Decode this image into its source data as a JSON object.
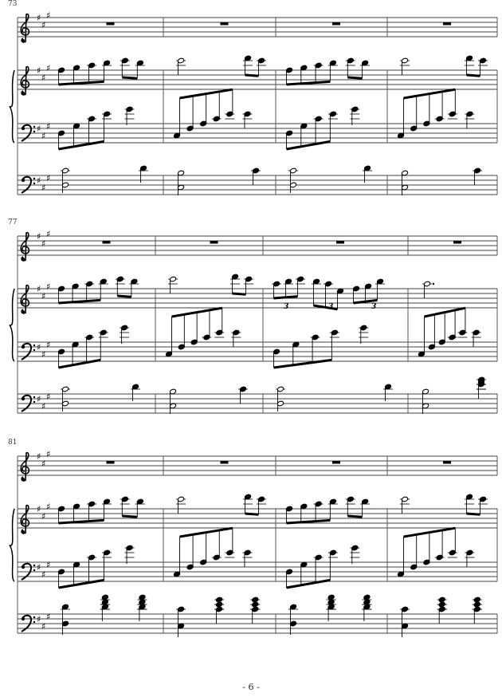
{
  "systems": [
    {
      "measure_number": "73"
    },
    {
      "measure_number": "77"
    },
    {
      "measure_number": "81"
    }
  ],
  "tuplets": [
    "3",
    "3",
    "3"
  ],
  "key_signature": "A major (three sharps)",
  "footer": {
    "page_number": "- 6 -"
  },
  "colors": {
    "ink": "#000000",
    "barline": "#555555"
  }
}
